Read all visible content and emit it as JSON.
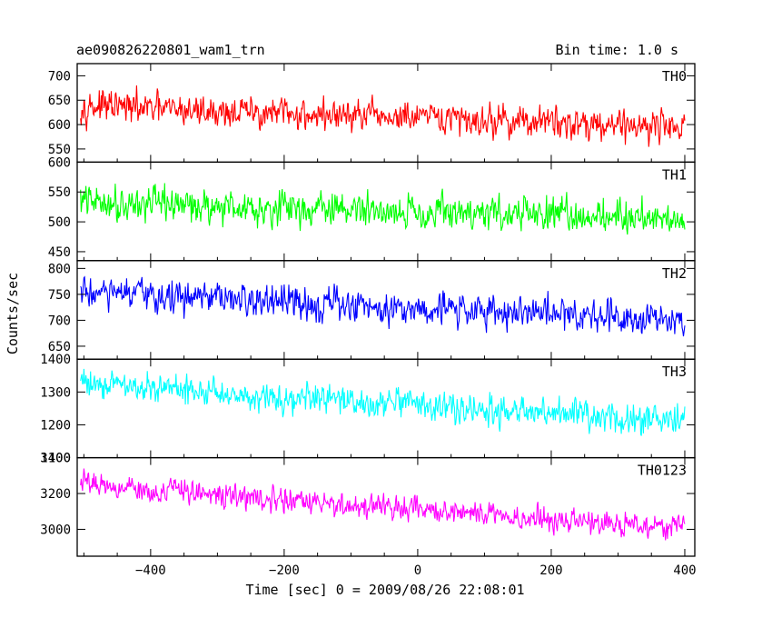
{
  "chart_data": {
    "type": "line",
    "title": "ae090826220801_wam1_trn",
    "bin_time_label": "Bin time: 1.0 s",
    "xlabel": "Time [sec] 0 = 2009/08/26 22:08:01",
    "ylabel": "Counts/sec",
    "xlim": [
      -510,
      415
    ],
    "x_ticks": [
      -400,
      -200,
      0,
      200,
      400
    ],
    "x_tick_labels": [
      "−400",
      "−200",
      "0",
      "200",
      "400"
    ],
    "x_data_range": [
      -505,
      400
    ],
    "grid": false,
    "panels": [
      {
        "name": "TH0",
        "color": "#ff0000",
        "ylim": [
          523,
          725
        ],
        "y_ticks": [
          550,
          600,
          650,
          700
        ],
        "y_tick_labels": [
          "550",
          "600",
          "650",
          "700"
        ],
        "trend_start": 640,
        "trend_end": 597,
        "noise": 27
      },
      {
        "name": "TH1",
        "color": "#00ff00",
        "ylim": [
          435,
          600
        ],
        "y_ticks": [
          450,
          500,
          550,
          600
        ],
        "y_tick_labels": [
          "450",
          "500",
          "550",
          "600"
        ],
        "trend_start": 535,
        "trend_end": 507,
        "noise": 24
      },
      {
        "name": "TH2",
        "color": "#0000ff",
        "ylim": [
          625,
          815
        ],
        "y_ticks": [
          650,
          700,
          750,
          800
        ],
        "y_tick_labels": [
          "650",
          "700",
          "750",
          "800"
        ],
        "trend_start": 755,
        "trend_end": 705,
        "noise": 27
      },
      {
        "name": "TH3",
        "color": "#00ffff",
        "ylim": [
          1100,
          1400
        ],
        "y_ticks": [
          1100,
          1200,
          1300,
          1400
        ],
        "y_tick_labels": [
          "1100",
          "1200",
          "1300",
          "1400"
        ],
        "trend_start": 1335,
        "trend_end": 1210,
        "noise": 38
      },
      {
        "name": "TH0123",
        "color": "#ff00ff",
        "ylim": [
          2850,
          3400
        ],
        "y_ticks": [
          3000,
          3200,
          3400
        ],
        "y_tick_labels": [
          "3000",
          "3200",
          "3400"
        ],
        "trend_start": 3270,
        "trend_end": 3010,
        "noise": 55
      }
    ]
  }
}
